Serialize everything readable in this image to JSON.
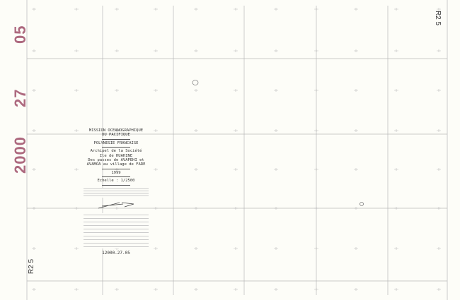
{
  "stamps": {
    "top": "05",
    "middle": "27",
    "bottom": "2000"
  },
  "sheet_refs": {
    "top_right": "R2 5",
    "bottom_left": "R2 5"
  },
  "cartouche": {
    "line1": "MISSION OCEANOGRAPHIQUE",
    "line2": "DU PACIFIQUE",
    "region": "POLYNESIE FRANCAISE",
    "title1": "Archipel de la Société",
    "title2": "Ile de HUAHINE",
    "title3": "Des passes de AVAPEHI et",
    "title4": "AVAMOA au village de FARE",
    "year": "1999",
    "scale": "Echelle : 1/2500",
    "code": "12000.27.05"
  },
  "colors": {
    "stamp": "#a0506a",
    "grid": "#b8b8b8",
    "paper": "#fdfdf8"
  }
}
